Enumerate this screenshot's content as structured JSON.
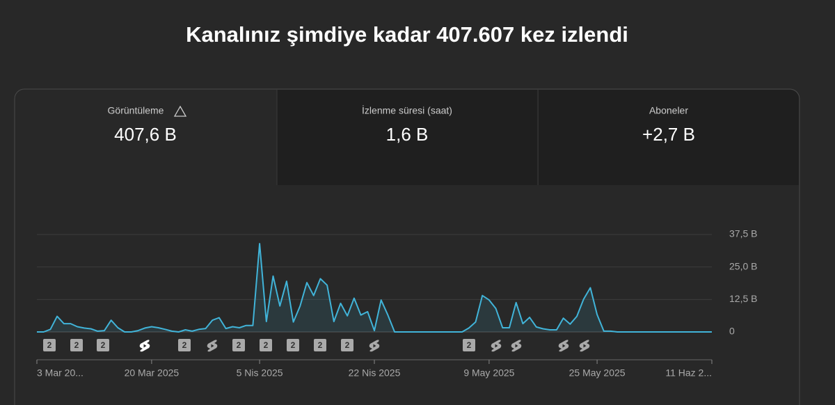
{
  "header": {
    "title": "Kanalınız şimdiye kadar 407.607 kez izlendi"
  },
  "tabs": [
    {
      "label": "Görüntüleme",
      "value": "407,6 B"
    },
    {
      "label": "İzlenme süresi (saat)",
      "value": "1,6 B"
    },
    {
      "label": "Aboneler",
      "value": "+2,7 B"
    }
  ],
  "video_markers": [
    "2",
    "2",
    "2",
    "2",
    "2",
    "2",
    "2",
    "2",
    "2",
    "2"
  ],
  "chart_data": {
    "type": "line",
    "color": "#41b4d9",
    "categories": [
      "3 Mar 20...",
      null,
      null,
      null,
      null,
      null,
      null,
      null,
      null,
      null,
      null,
      null,
      null,
      null,
      null,
      null,
      null,
      "20 Mar 2025",
      null,
      null,
      null,
      null,
      null,
      null,
      null,
      null,
      null,
      null,
      null,
      null,
      null,
      null,
      null,
      "5 Nis 2025",
      null,
      null,
      null,
      null,
      null,
      null,
      null,
      null,
      null,
      null,
      null,
      null,
      null,
      null,
      null,
      null,
      "22 Nis 2025",
      null,
      null,
      null,
      null,
      null,
      null,
      null,
      null,
      null,
      null,
      null,
      null,
      null,
      null,
      null,
      null,
      "9 May 2025",
      null,
      null,
      null,
      null,
      null,
      null,
      null,
      null,
      null,
      null,
      null,
      null,
      null,
      null,
      null,
      "25 May 2025",
      null,
      null,
      null,
      null,
      null,
      null,
      null,
      null,
      null,
      null,
      null,
      null,
      null,
      null,
      null,
      null,
      "11 Haz 2..."
    ],
    "values": [
      0,
      0,
      1,
      6,
      3.2,
      3.2,
      2,
      1.5,
      1.2,
      0.3,
      0.5,
      4.5,
      1.6,
      0,
      0,
      0.5,
      1.5,
      2,
      1.6,
      1,
      0.3,
      0,
      0.8,
      0.3,
      1,
      1.3,
      4.5,
      5.5,
      1.3,
      2,
      1.6,
      2.5,
      2.5,
      34,
      4,
      21.5,
      10,
      19.5,
      3.8,
      10,
      19,
      14,
      20.5,
      18,
      4,
      11,
      6.2,
      13,
      6.5,
      7.8,
      0.5,
      12.3,
      6.5,
      0,
      0,
      0,
      0,
      0,
      0,
      0,
      0,
      0,
      0,
      0,
      1.5,
      3.8,
      14,
      12.3,
      9,
      1.6,
      1.6,
      11.3,
      3.2,
      5.6,
      1.9,
      1.2,
      0.8,
      0.8,
      5.3,
      3,
      6,
      12.6,
      17,
      6.7,
      0.3,
      0.3,
      0,
      0,
      0,
      0,
      0,
      0,
      0,
      0,
      0,
      0,
      0,
      0,
      0,
      0,
      0
    ],
    "ylim": [
      0,
      37.5
    ],
    "yticks": [
      0,
      {
        "value": 12.5,
        "label": "12,5 B"
      },
      {
        "value": 25,
        "label": "25,0 B"
      },
      {
        "value": 37.5,
        "label": "37,5 B"
      }
    ],
    "grid": true
  }
}
